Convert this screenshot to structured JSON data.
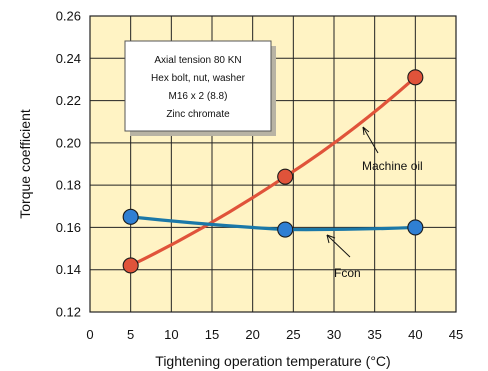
{
  "chart_data": {
    "type": "line",
    "title": "",
    "xlabel": "Tightening operation temperature (°C)",
    "ylabel": "Torque coefficient",
    "xlim": [
      0,
      45
    ],
    "ylim": [
      0.12,
      0.26
    ],
    "xticks": [
      "0",
      "5",
      "10",
      "15",
      "20",
      "25",
      "30",
      "35",
      "40",
      "45"
    ],
    "yticks": [
      "0.12",
      "0.14",
      "0.16",
      "0.18",
      "0.20",
      "0.22",
      "0.24",
      "0.26"
    ],
    "grid": true,
    "background_color": "#fff3c4",
    "grid_color": "#222222",
    "annotation_lines": [
      "Axial tension 80 KN",
      "Hex bolt, nut, washer",
      "M16 x 2 (8.8)",
      "Zinc chromate"
    ],
    "series": [
      {
        "name": "Machine oil",
        "color": "#e0533a",
        "marker_color": "#e0533a",
        "points": [
          [
            5,
            0.142
          ],
          [
            24,
            0.184
          ],
          [
            40,
            0.231
          ]
        ]
      },
      {
        "name": "Fcon",
        "color": "#1b78a8",
        "marker_color": "#2f7fd3",
        "points": [
          [
            5,
            0.165
          ],
          [
            24,
            0.159
          ],
          [
            40,
            0.16
          ]
        ]
      }
    ]
  }
}
